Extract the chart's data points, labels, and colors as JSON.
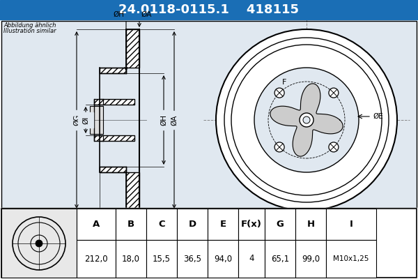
{
  "title_part_num": "24.0118-0115.1",
  "title_ref_num": "418115",
  "header_bg": "#1a6eb5",
  "header_text_color": "#ffffff",
  "diagram_bg": "#e0e8f0",
  "border_color": "#000000",
  "note_line1": "Abbildung ähnlich",
  "note_line2": "Illustration similar",
  "col_headers": [
    "A",
    "B",
    "C",
    "D",
    "E",
    "F(x)",
    "G",
    "H",
    "I"
  ],
  "col_values": [
    "212,0",
    "18,0",
    "15,5",
    "36,5",
    "94,0",
    "4",
    "65,1",
    "99,0",
    "M10x1,25"
  ],
  "hatch_color": "#555555",
  "dim_line_color": "#000000",
  "crosshair_color": "#888888"
}
